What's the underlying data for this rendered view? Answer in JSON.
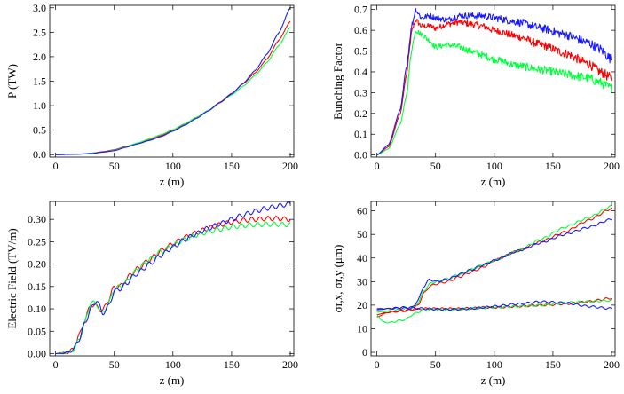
{
  "colors": {
    "red": "#ff0000",
    "green": "#00ff3c",
    "blue": "#1a1aff"
  },
  "chart_data": [
    {
      "type": "line",
      "id": "power",
      "xlabel": "z (m)",
      "ylabel": "P (TW)",
      "xlim": [
        -5,
        203
      ],
      "ylim": [
        -0.05,
        3.05
      ],
      "xticks": [
        0,
        50,
        100,
        150,
        200
      ],
      "yticks": [
        "0.0",
        "0.5",
        "1.0",
        "1.5",
        "2.0",
        "2.5",
        "3.0"
      ],
      "noise": 0,
      "series": [
        {
          "color": "red",
          "x": [
            0,
            20,
            30,
            40,
            50,
            60,
            70,
            80,
            90,
            100,
            110,
            120,
            130,
            140,
            150,
            160,
            170,
            180,
            190,
            200
          ],
          "y": [
            0,
            0.01,
            0.03,
            0.06,
            0.1,
            0.17,
            0.23,
            0.3,
            0.39,
            0.5,
            0.62,
            0.76,
            0.9,
            1.07,
            1.25,
            1.45,
            1.67,
            1.95,
            2.33,
            2.72
          ]
        },
        {
          "color": "green",
          "x": [
            0,
            20,
            30,
            40,
            50,
            60,
            70,
            80,
            90,
            100,
            110,
            120,
            130,
            140,
            150,
            160,
            170,
            180,
            190,
            200
          ],
          "y": [
            0,
            0.01,
            0.03,
            0.05,
            0.09,
            0.16,
            0.24,
            0.32,
            0.41,
            0.51,
            0.63,
            0.76,
            0.9,
            1.06,
            1.22,
            1.4,
            1.62,
            1.88,
            2.22,
            2.6
          ]
        },
        {
          "color": "blue",
          "x": [
            0,
            20,
            30,
            40,
            50,
            60,
            70,
            80,
            90,
            100,
            110,
            120,
            130,
            140,
            150,
            160,
            170,
            180,
            190,
            200
          ],
          "y": [
            0,
            0.01,
            0.02,
            0.05,
            0.08,
            0.15,
            0.22,
            0.29,
            0.37,
            0.48,
            0.6,
            0.74,
            0.89,
            1.06,
            1.24,
            1.46,
            1.72,
            2.05,
            2.48,
            3.0
          ]
        }
      ]
    },
    {
      "type": "line",
      "id": "bunching",
      "xlabel": "z (m)",
      "ylabel": "Bunching Factor",
      "xlim": [
        -5,
        203
      ],
      "ylim": [
        -0.01,
        0.72
      ],
      "xticks": [
        0,
        50,
        100,
        150,
        200
      ],
      "yticks": [
        "0.0",
        "0.1",
        "0.2",
        "0.3",
        "0.4",
        "0.5",
        "0.6",
        "0.7"
      ],
      "noise": 0.012,
      "series": [
        {
          "color": "red",
          "x": [
            0,
            10,
            20,
            25,
            30,
            33,
            38,
            45,
            50,
            60,
            70,
            80,
            90,
            100,
            120,
            140,
            160,
            180,
            190,
            200
          ],
          "y": [
            0,
            0.04,
            0.2,
            0.38,
            0.6,
            0.65,
            0.62,
            0.62,
            0.61,
            0.63,
            0.64,
            0.63,
            0.62,
            0.6,
            0.57,
            0.53,
            0.49,
            0.44,
            0.4,
            0.37
          ]
        },
        {
          "color": "green",
          "x": [
            0,
            10,
            20,
            25,
            30,
            33,
            38,
            45,
            50,
            60,
            70,
            80,
            90,
            100,
            120,
            140,
            160,
            180,
            190,
            200
          ],
          "y": [
            0,
            0.03,
            0.15,
            0.28,
            0.52,
            0.6,
            0.58,
            0.55,
            0.52,
            0.53,
            0.52,
            0.5,
            0.48,
            0.46,
            0.43,
            0.41,
            0.39,
            0.37,
            0.35,
            0.32
          ]
        },
        {
          "color": "blue",
          "x": [
            0,
            10,
            20,
            25,
            30,
            33,
            38,
            45,
            50,
            60,
            70,
            80,
            90,
            100,
            120,
            140,
            160,
            180,
            190,
            200
          ],
          "y": [
            0,
            0.05,
            0.22,
            0.42,
            0.63,
            0.7,
            0.66,
            0.67,
            0.66,
            0.65,
            0.67,
            0.67,
            0.67,
            0.66,
            0.64,
            0.61,
            0.58,
            0.54,
            0.51,
            0.46
          ]
        }
      ]
    },
    {
      "type": "line",
      "id": "field",
      "xlabel": "z (m)",
      "ylabel": "Electric Field (TV/m)",
      "xlim": [
        -5,
        203
      ],
      "ylim": [
        -0.005,
        0.34
      ],
      "xticks": [
        0,
        50,
        100,
        150,
        200
      ],
      "yticks": [
        "0.00",
        "0.05",
        "0.10",
        "0.15",
        "0.20",
        "0.25",
        "0.30"
      ],
      "noise": 0,
      "wiggle": 0.005,
      "series": [
        {
          "color": "red",
          "x": [
            0,
            10,
            15,
            20,
            25,
            30,
            35,
            40,
            45,
            50,
            55,
            60,
            65,
            70,
            80,
            90,
            100,
            110,
            120,
            130,
            140,
            150,
            160,
            170,
            180,
            190,
            200
          ],
          "y": [
            0,
            0.002,
            0.01,
            0.04,
            0.075,
            0.11,
            0.105,
            0.095,
            0.12,
            0.15,
            0.15,
            0.165,
            0.18,
            0.19,
            0.21,
            0.23,
            0.245,
            0.26,
            0.27,
            0.28,
            0.288,
            0.294,
            0.298,
            0.3,
            0.302,
            0.302,
            0.3
          ]
        },
        {
          "color": "green",
          "x": [
            0,
            10,
            15,
            20,
            25,
            30,
            35,
            40,
            45,
            50,
            55,
            60,
            65,
            70,
            80,
            90,
            100,
            110,
            120,
            130,
            140,
            150,
            160,
            170,
            180,
            190,
            200
          ],
          "y": [
            0,
            0.002,
            0.008,
            0.03,
            0.07,
            0.115,
            0.11,
            0.09,
            0.11,
            0.145,
            0.15,
            0.16,
            0.175,
            0.19,
            0.21,
            0.228,
            0.242,
            0.255,
            0.265,
            0.272,
            0.278,
            0.283,
            0.286,
            0.288,
            0.289,
            0.289,
            0.288
          ]
        },
        {
          "color": "blue",
          "x": [
            0,
            10,
            15,
            20,
            25,
            30,
            35,
            40,
            45,
            50,
            55,
            60,
            65,
            70,
            80,
            90,
            100,
            110,
            120,
            130,
            140,
            150,
            160,
            170,
            180,
            190,
            200
          ],
          "y": [
            0,
            0.002,
            0.009,
            0.032,
            0.068,
            0.1,
            0.12,
            0.09,
            0.105,
            0.14,
            0.145,
            0.155,
            0.17,
            0.18,
            0.2,
            0.22,
            0.238,
            0.255,
            0.268,
            0.28,
            0.29,
            0.3,
            0.31,
            0.318,
            0.325,
            0.33,
            0.335
          ]
        }
      ]
    },
    {
      "type": "line",
      "id": "beamsize",
      "xlabel": "z (m)",
      "ylabel": "σr,x, σr,y (μm)",
      "xlim": [
        -5,
        203
      ],
      "ylim": [
        -1.5,
        64
      ],
      "xticks": [
        0,
        50,
        100,
        150,
        200
      ],
      "yticks": [
        "0",
        "10",
        "20",
        "30",
        "40",
        "50",
        "60"
      ],
      "noise": 0,
      "wiggle": 0.4,
      "series": [
        {
          "color": "red",
          "x": [
            0,
            10,
            20,
            30,
            35,
            40,
            45,
            50,
            60,
            70,
            80,
            90,
            100,
            120,
            140,
            160,
            180,
            200
          ],
          "y": [
            16,
            17,
            17.5,
            18,
            20,
            25,
            28,
            29,
            30,
            32,
            34,
            36,
            39,
            43,
            47,
            51,
            56,
            61
          ]
        },
        {
          "color": "green",
          "x": [
            0,
            10,
            20,
            30,
            35,
            40,
            45,
            50,
            60,
            70,
            80,
            90,
            100,
            120,
            140,
            160,
            180,
            200
          ],
          "y": [
            17,
            17.5,
            18,
            18.5,
            21,
            26,
            29,
            30,
            31,
            33,
            35,
            37,
            39,
            43,
            48,
            53,
            57,
            62
          ]
        },
        {
          "color": "blue",
          "x": [
            0,
            10,
            20,
            30,
            35,
            40,
            45,
            50,
            60,
            70,
            80,
            90,
            100,
            120,
            140,
            160,
            180,
            200
          ],
          "y": [
            18,
            18.5,
            19,
            19,
            22,
            28,
            31,
            30,
            31,
            33,
            35,
            37,
            39,
            43,
            46.5,
            50,
            53,
            56.5
          ]
        },
        {
          "color": "red",
          "x": [
            0,
            10,
            20,
            30,
            40,
            50,
            60,
            70,
            80,
            90,
            100,
            120,
            140,
            160,
            180,
            200
          ],
          "y": [
            15,
            17,
            17.5,
            18,
            18.5,
            18.5,
            18.5,
            18.5,
            18.7,
            19,
            19,
            19.5,
            20,
            20.5,
            21.5,
            23
          ]
        },
        {
          "color": "green",
          "x": [
            0,
            5,
            10,
            15,
            20,
            25,
            30,
            40,
            50,
            60,
            70,
            80,
            90,
            100,
            120,
            140,
            160,
            180,
            200
          ],
          "y": [
            16,
            13,
            12.5,
            13,
            13.5,
            14,
            16,
            18,
            18,
            18,
            18.2,
            18.5,
            18.8,
            19,
            19.5,
            20,
            21,
            21.5,
            22
          ]
        },
        {
          "color": "blue",
          "x": [
            0,
            10,
            20,
            30,
            40,
            50,
            60,
            70,
            80,
            90,
            100,
            120,
            140,
            160,
            180,
            200
          ],
          "y": [
            18.5,
            18.5,
            18.7,
            18.8,
            18.5,
            18.3,
            18.2,
            18.3,
            18.5,
            19,
            19.5,
            20.5,
            21.5,
            21,
            19.5,
            18.5
          ]
        }
      ]
    }
  ]
}
